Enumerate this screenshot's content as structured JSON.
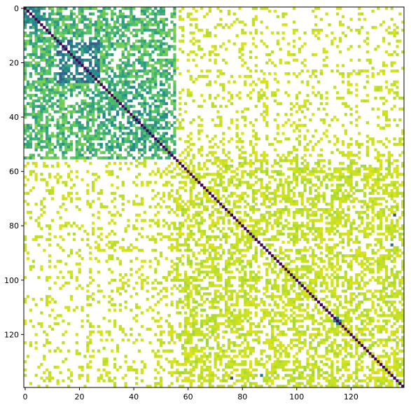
{
  "chart_data": {
    "type": "heatmap",
    "title": "",
    "xlabel": "",
    "ylabel": "",
    "n_rows": 140,
    "n_cols": 140,
    "x_range": [
      -0.5,
      139.5
    ],
    "y_range": [
      -0.5,
      139.5
    ],
    "y_axis_inverted": true,
    "x_ticks": [
      0,
      20,
      40,
      60,
      80,
      100,
      120
    ],
    "x_tick_labels": [
      "0",
      "20",
      "40",
      "60",
      "80",
      "100",
      "120"
    ],
    "y_ticks": [
      0,
      20,
      40,
      60,
      80,
      100,
      120
    ],
    "y_tick_labels": [
      "0",
      "20",
      "40",
      "60",
      "80",
      "100",
      "120"
    ],
    "colormap": [
      "#440154",
      "#3b528b",
      "#21918c",
      "#5ec962",
      "#b5de2b",
      "#dde318"
    ],
    "missing_color": "#ffffff",
    "grid": false,
    "legend": "none",
    "diagonal_value": 0.0,
    "blocks": [
      {
        "name": "A",
        "start": 0,
        "end": 55,
        "within_value": 0.55,
        "density": 0.78
      },
      {
        "name": "B",
        "start": 56,
        "end": 139,
        "within_value": 0.88,
        "density": 0.62
      }
    ],
    "sub_blocks": [
      {
        "start": 0,
        "end": 8,
        "value": 0.4
      },
      {
        "start": 12,
        "end": 27,
        "value": 0.35
      },
      {
        "start": 28,
        "end": 52,
        "value": 0.48
      }
    ],
    "cross_block_value": 0.9,
    "cross_block_density": 0.28,
    "highlight_cells": [
      {
        "row": 114,
        "col": 115,
        "value": 0.3
      },
      {
        "row": 115,
        "col": 114,
        "value": 0.3
      },
      {
        "row": 116,
        "col": 115,
        "value": 0.35
      },
      {
        "row": 115,
        "col": 116,
        "value": 0.35
      },
      {
        "row": 136,
        "col": 76,
        "value": 0.2
      },
      {
        "row": 76,
        "col": 136,
        "value": 0.2
      },
      {
        "row": 87,
        "col": 135,
        "value": 0.3
      },
      {
        "row": 135,
        "col": 87,
        "value": 0.3
      }
    ]
  }
}
